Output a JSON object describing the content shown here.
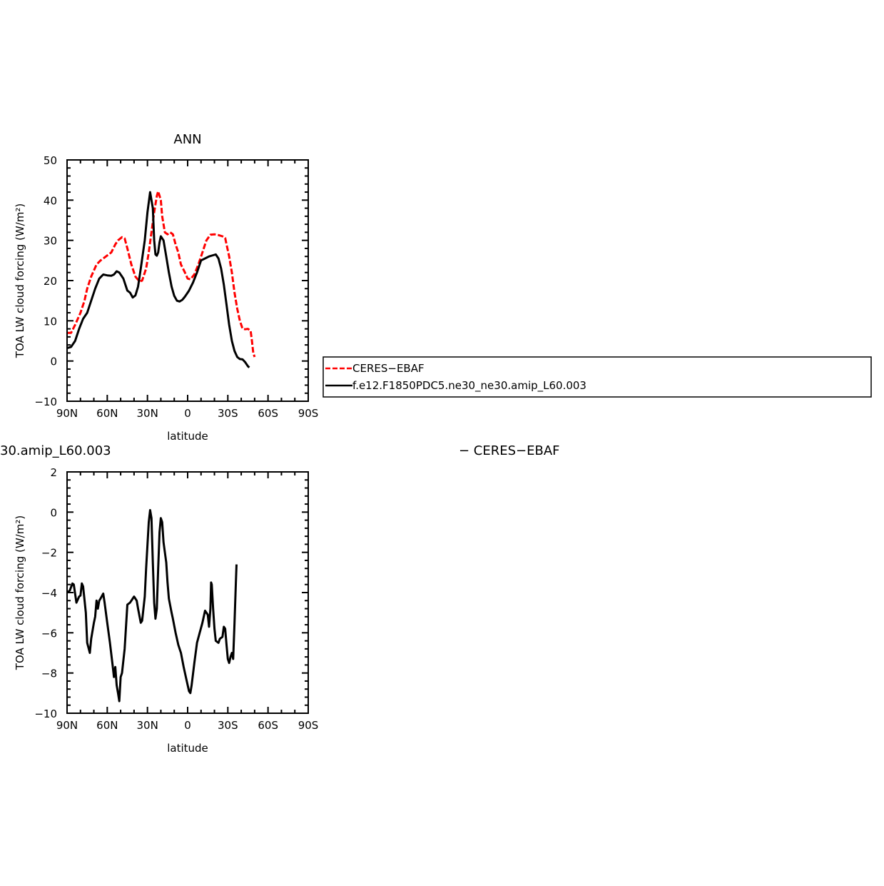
{
  "chart_data": [
    {
      "type": "line",
      "title": "ANN",
      "xlabel": "latitude",
      "ylabel": "TOA LW cloud forcing (W/m²)",
      "xlim": [
        -90,
        90
      ],
      "ylim": [
        -10,
        50
      ],
      "xticks": [
        -90,
        -60,
        -30,
        0,
        30,
        60,
        90
      ],
      "xtick_labels": [
        "90N",
        "60N",
        "30N",
        "0",
        "30S",
        "60S",
        "90S"
      ],
      "yticks": [
        -10,
        0,
        10,
        20,
        30,
        40,
        50
      ],
      "ytick_labels": [
        "−10",
        "0",
        "10",
        "20",
        "30",
        "40",
        "50"
      ],
      "legend": "right, outside plot",
      "series": [
        {
          "name": "CERES−EBAF",
          "color": "#ff0000",
          "style": "dashed",
          "points": [
            [
              -90,
              7
            ],
            [
              -87,
              7
            ],
            [
              -84,
              9
            ],
            [
              -80,
              12
            ],
            [
              -77,
              15
            ],
            [
              -75,
              18
            ],
            [
              -72,
              21
            ],
            [
              -68,
              24
            ],
            [
              -65,
              25
            ],
            [
              -61,
              26
            ],
            [
              -57,
              27
            ],
            [
              -54,
              29
            ],
            [
              -52,
              30
            ],
            [
              -49,
              30.8
            ],
            [
              -47,
              30.5
            ],
            [
              -45,
              28
            ],
            [
              -42,
              24
            ],
            [
              -39,
              21
            ],
            [
              -36,
              19.8
            ],
            [
              -34,
              20
            ],
            [
              -31,
              23
            ],
            [
              -29,
              27
            ],
            [
              -27,
              32
            ],
            [
              -25,
              37
            ],
            [
              -23,
              41
            ],
            [
              -22,
              42.2
            ],
            [
              -20,
              40
            ],
            [
              -19,
              36
            ],
            [
              -17,
              32
            ],
            [
              -15,
              31.5
            ],
            [
              -13,
              32
            ],
            [
              -11,
              31.5
            ],
            [
              -9,
              29
            ],
            [
              -7,
              27
            ],
            [
              -5,
              24
            ],
            [
              -2,
              22
            ],
            [
              0,
              20.5
            ],
            [
              2,
              20.3
            ],
            [
              5,
              21.5
            ],
            [
              8,
              24
            ],
            [
              11,
              27
            ],
            [
              14,
              30
            ],
            [
              17,
              31.4
            ],
            [
              20,
              31.5
            ],
            [
              23,
              31.3
            ],
            [
              26,
              31
            ],
            [
              28,
              30.6
            ],
            [
              29,
              29
            ],
            [
              31,
              26
            ],
            [
              33,
              22
            ],
            [
              35,
              17
            ],
            [
              37,
              13
            ],
            [
              39,
              10
            ],
            [
              41,
              8
            ],
            [
              43,
              7.9
            ],
            [
              45,
              8
            ],
            [
              47,
              7.5
            ],
            [
              48,
              5
            ],
            [
              49,
              2
            ],
            [
              50,
              1
            ]
          ]
        },
        {
          "name": "f.e12.F1850PDC5.ne30_ne30.amip_L60.003",
          "color": "#000000",
          "style": "solid",
          "points": [
            [
              -90,
              3.2
            ],
            [
              -87,
              3.5
            ],
            [
              -84,
              5
            ],
            [
              -81,
              8
            ],
            [
              -78,
              10.5
            ],
            [
              -75,
              12
            ],
            [
              -72,
              15
            ],
            [
              -69,
              18
            ],
            [
              -66,
              20.5
            ],
            [
              -63,
              21.5
            ],
            [
              -60,
              21.3
            ],
            [
              -57,
              21.2
            ],
            [
              -55,
              21.5
            ],
            [
              -53,
              22.3
            ],
            [
              -51,
              22
            ],
            [
              -48,
              20.5
            ],
            [
              -45,
              17.5
            ],
            [
              -43,
              17
            ],
            [
              -41,
              15.8
            ],
            [
              -39,
              16.3
            ],
            [
              -37,
              18.5
            ],
            [
              -35,
              23
            ],
            [
              -32,
              30
            ],
            [
              -30,
              37
            ],
            [
              -28,
              42
            ],
            [
              -26,
              38
            ],
            [
              -25,
              30
            ],
            [
              -24,
              26.5
            ],
            [
              -23,
              26.2
            ],
            [
              -22,
              27
            ],
            [
              -21,
              29.5
            ],
            [
              -20,
              31
            ],
            [
              -18,
              30
            ],
            [
              -16,
              26
            ],
            [
              -14,
              22
            ],
            [
              -12,
              18.5
            ],
            [
              -10,
              16.2
            ],
            [
              -8,
              15
            ],
            [
              -6,
              14.8
            ],
            [
              -4,
              15.2
            ],
            [
              -2,
              16
            ],
            [
              1,
              17.5
            ],
            [
              4,
              19.5
            ],
            [
              7,
              22
            ],
            [
              10,
              25
            ],
            [
              13,
              25.5
            ],
            [
              16,
              26
            ],
            [
              19,
              26.3
            ],
            [
              21,
              26.5
            ],
            [
              23,
              25.5
            ],
            [
              25,
              23
            ],
            [
              27,
              19
            ],
            [
              29,
              14
            ],
            [
              31,
              9
            ],
            [
              33,
              5
            ],
            [
              35,
              2.5
            ],
            [
              37,
              1
            ],
            [
              39,
              0.5
            ],
            [
              41,
              0.4
            ],
            [
              43,
              -0.3
            ],
            [
              45,
              -1.3
            ],
            [
              46,
              -1.6
            ]
          ]
        }
      ]
    },
    {
      "type": "line",
      "title": "30.amip_L60.003",
      "title_right": "− CERES−EBAF",
      "xlabel": "latitude",
      "ylabel": "TOA LW cloud forcing (W/m²)",
      "xlim": [
        -90,
        90
      ],
      "ylim": [
        -10,
        2
      ],
      "xticks": [
        -90,
        -60,
        -30,
        0,
        30,
        60,
        90
      ],
      "xtick_labels": [
        "90N",
        "60N",
        "30N",
        "0",
        "30S",
        "60S",
        "90S"
      ],
      "yticks": [
        -10,
        -8,
        -6,
        -4,
        -2,
        0,
        2
      ],
      "ytick_labels": [
        "−10",
        "−8",
        "−6",
        "−4",
        "−2",
        "0",
        "2"
      ],
      "series": [
        {
          "color": "#000000",
          "style": "solid",
          "points": [
            [
              -90,
              -4
            ],
            [
              -88,
              -3.9
            ],
            [
              -86,
              -3.55
            ],
            [
              -85,
              -3.6
            ],
            [
              -83,
              -4.5
            ],
            [
              -81,
              -4.2
            ],
            [
              -80,
              -4.15
            ],
            [
              -79,
              -3.55
            ],
            [
              -78,
              -3.7
            ],
            [
              -76,
              -5
            ],
            [
              -75,
              -6.5
            ],
            [
              -73,
              -7
            ],
            [
              -72,
              -6.3
            ],
            [
              -70,
              -5.5
            ],
            [
              -69,
              -5.2
            ],
            [
              -68,
              -4.4
            ],
            [
              -67,
              -4.8
            ],
            [
              -66,
              -4.4
            ],
            [
              -65,
              -4.3
            ],
            [
              -63,
              -4.05
            ],
            [
              -62,
              -4.5
            ],
            [
              -60,
              -5.5
            ],
            [
              -58,
              -6.5
            ],
            [
              -56,
              -7.6
            ],
            [
              -55,
              -8.2
            ],
            [
              -54,
              -7.7
            ],
            [
              -53,
              -8.6
            ],
            [
              -52,
              -9
            ],
            [
              -51,
              -9.4
            ],
            [
              -50,
              -8.2
            ],
            [
              -49,
              -8
            ],
            [
              -47,
              -6.8
            ],
            [
              -45,
              -4.6
            ],
            [
              -43,
              -4.5
            ],
            [
              -41,
              -4.3
            ],
            [
              -40,
              -4.2
            ],
            [
              -38,
              -4.4
            ],
            [
              -37,
              -4.8
            ],
            [
              -35,
              -5.5
            ],
            [
              -34,
              -5.4
            ],
            [
              -32,
              -4.2
            ],
            [
              -31,
              -2.8
            ],
            [
              -29,
              -0.5
            ],
            [
              -28,
              0.1
            ],
            [
              -27,
              -0.3
            ],
            [
              -26,
              -2.5
            ],
            [
              -25,
              -4.5
            ],
            [
              -24,
              -5.3
            ],
            [
              -23,
              -4.8
            ],
            [
              -22,
              -2.8
            ],
            [
              -21,
              -1
            ],
            [
              -20,
              -0.3
            ],
            [
              -19,
              -0.5
            ],
            [
              -18,
              -1.5
            ],
            [
              -16,
              -2.5
            ],
            [
              -15,
              -3.5
            ],
            [
              -14,
              -4.3
            ],
            [
              -12,
              -5
            ],
            [
              -11,
              -5.3
            ],
            [
              -9,
              -6
            ],
            [
              -7,
              -6.6
            ],
            [
              -5,
              -7
            ],
            [
              -3,
              -7.7
            ],
            [
              -1,
              -8.3
            ],
            [
              1,
              -8.9
            ],
            [
              2,
              -9
            ],
            [
              3,
              -8.6
            ],
            [
              5,
              -7.5
            ],
            [
              7,
              -6.5
            ],
            [
              9,
              -6
            ],
            [
              11,
              -5.5
            ],
            [
              13,
              -4.9
            ],
            [
              15,
              -5.1
            ],
            [
              16,
              -5.7
            ],
            [
              17,
              -4.8
            ],
            [
              17.5,
              -3.5
            ],
            [
              18,
              -3.6
            ],
            [
              19,
              -4.8
            ],
            [
              20,
              -5.8
            ],
            [
              21,
              -6.4
            ],
            [
              23,
              -6.5
            ],
            [
              24,
              -6.3
            ],
            [
              26,
              -6.2
            ],
            [
              27,
              -5.7
            ],
            [
              28,
              -5.8
            ],
            [
              29,
              -6.6
            ],
            [
              30,
              -7.3
            ],
            [
              31,
              -7.5
            ],
            [
              32,
              -7.2
            ],
            [
              33,
              -7
            ],
            [
              34,
              -7.3
            ],
            [
              35,
              -5.5
            ],
            [
              36,
              -3.5
            ],
            [
              36.5,
              -2.6
            ]
          ]
        }
      ]
    }
  ]
}
